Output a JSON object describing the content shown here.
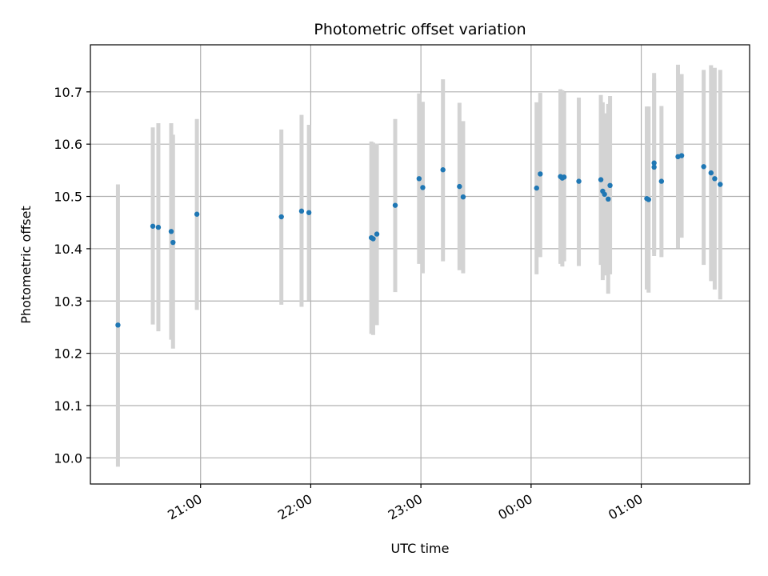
{
  "chart_data": {
    "type": "scatter",
    "title": "Photometric offset variation",
    "xlabel": "UTC time",
    "ylabel": "Photometric offset",
    "grid": true,
    "legend": "none",
    "x_axis": {
      "kind": "time",
      "range": [
        "2000-01-01T20:00",
        "2000-01-02T01:59"
      ],
      "ticks": [
        {
          "t": "2000-01-01T21:00",
          "label": "21:00"
        },
        {
          "t": "2000-01-01T22:00",
          "label": "22:00"
        },
        {
          "t": "2000-01-01T23:00",
          "label": "23:00"
        },
        {
          "t": "2000-01-02T00:00",
          "label": "00:00"
        },
        {
          "t": "2000-01-02T01:00",
          "label": "01:00"
        }
      ]
    },
    "y_axis": {
      "range": [
        9.95,
        10.79
      ],
      "ticks": [
        {
          "v": 10.0,
          "label": "10.0"
        },
        {
          "v": 10.1,
          "label": "10.1"
        },
        {
          "v": 10.2,
          "label": "10.2"
        },
        {
          "v": 10.3,
          "label": "10.3"
        },
        {
          "v": 10.4,
          "label": "10.4"
        },
        {
          "v": 10.5,
          "label": "10.5"
        },
        {
          "v": 10.6,
          "label": "10.6"
        },
        {
          "v": 10.7,
          "label": "10.7"
        }
      ]
    },
    "colors": {
      "point": "#1f77b4",
      "error_bar": "#d3d3d3",
      "grid": "#b0b0b0"
    },
    "points": [
      {
        "t": "2000-01-01T20:15",
        "y": 10.254,
        "lo": 9.983,
        "hi": 10.523
      },
      {
        "t": "2000-01-01T20:34",
        "y": 10.443,
        "lo": 10.255,
        "hi": 10.632
      },
      {
        "t": "2000-01-01T20:37",
        "y": 10.441,
        "lo": 10.242,
        "hi": 10.64
      },
      {
        "t": "2000-01-01T20:44",
        "y": 10.433,
        "lo": 10.226,
        "hi": 10.64
      },
      {
        "t": "2000-01-01T20:45",
        "y": 10.412,
        "lo": 10.209,
        "hi": 10.618
      },
      {
        "t": "2000-01-01T20:58",
        "y": 10.466,
        "lo": 10.283,
        "hi": 10.648
      },
      {
        "t": "2000-01-01T21:44",
        "y": 10.461,
        "lo": 10.293,
        "hi": 10.628
      },
      {
        "t": "2000-01-01T21:55",
        "y": 10.472,
        "lo": 10.289,
        "hi": 10.656
      },
      {
        "t": "2000-01-01T21:59",
        "y": 10.469,
        "lo": 10.301,
        "hi": 10.637
      },
      {
        "t": "2000-01-01T22:33",
        "y": 10.421,
        "lo": 10.237,
        "hi": 10.605
      },
      {
        "t": "2000-01-01T22:34",
        "y": 10.419,
        "lo": 10.235,
        "hi": 10.603
      },
      {
        "t": "2000-01-01T22:36",
        "y": 10.428,
        "lo": 10.254,
        "hi": 10.601
      },
      {
        "t": "2000-01-01T22:46",
        "y": 10.483,
        "lo": 10.317,
        "hi": 10.648
      },
      {
        "t": "2000-01-01T22:59",
        "y": 10.534,
        "lo": 10.371,
        "hi": 10.697
      },
      {
        "t": "2000-01-01T23:01",
        "y": 10.517,
        "lo": 10.353,
        "hi": 10.681
      },
      {
        "t": "2000-01-01T23:12",
        "y": 10.551,
        "lo": 10.376,
        "hi": 10.724
      },
      {
        "t": "2000-01-01T23:21",
        "y": 10.519,
        "lo": 10.359,
        "hi": 10.679
      },
      {
        "t": "2000-01-01T23:23",
        "y": 10.499,
        "lo": 10.353,
        "hi": 10.644
      },
      {
        "t": "2000-01-02T00:03",
        "y": 10.516,
        "lo": 10.351,
        "hi": 10.68
      },
      {
        "t": "2000-01-02T00:05",
        "y": 10.543,
        "lo": 10.384,
        "hi": 10.698
      },
      {
        "t": "2000-01-02T00:16",
        "y": 10.538,
        "lo": 10.371,
        "hi": 10.705
      },
      {
        "t": "2000-01-02T00:17",
        "y": 10.535,
        "lo": 10.366,
        "hi": 10.703
      },
      {
        "t": "2000-01-02T00:18",
        "y": 10.537,
        "lo": 10.376,
        "hi": 10.699
      },
      {
        "t": "2000-01-02T00:26",
        "y": 10.529,
        "lo": 10.367,
        "hi": 10.689
      },
      {
        "t": "2000-01-02T00:38",
        "y": 10.532,
        "lo": 10.369,
        "hi": 10.694
      },
      {
        "t": "2000-01-02T00:39",
        "y": 10.51,
        "lo": 10.34,
        "hi": 10.68
      },
      {
        "t": "2000-01-02T00:40",
        "y": 10.504,
        "lo": 10.349,
        "hi": 10.659
      },
      {
        "t": "2000-01-02T00:42",
        "y": 10.495,
        "lo": 10.314,
        "hi": 10.677
      },
      {
        "t": "2000-01-02T00:43",
        "y": 10.521,
        "lo": 10.351,
        "hi": 10.692
      },
      {
        "t": "2000-01-02T01:03",
        "y": 10.496,
        "lo": 10.322,
        "hi": 10.672
      },
      {
        "t": "2000-01-02T01:04",
        "y": 10.494,
        "lo": 10.316,
        "hi": 10.672
      },
      {
        "t": "2000-01-02T01:07",
        "y": 10.564,
        "lo": 10.393,
        "hi": 10.736
      },
      {
        "t": "2000-01-02T01:07",
        "y": 10.556,
        "lo": 10.386,
        "hi": 10.726
      },
      {
        "t": "2000-01-02T01:11",
        "y": 10.529,
        "lo": 10.384,
        "hi": 10.673
      },
      {
        "t": "2000-01-02T01:20",
        "y": 10.576,
        "lo": 10.401,
        "hi": 10.752
      },
      {
        "t": "2000-01-02T01:22",
        "y": 10.578,
        "lo": 10.421,
        "hi": 10.734
      },
      {
        "t": "2000-01-02T01:34",
        "y": 10.557,
        "lo": 10.369,
        "hi": 10.742
      },
      {
        "t": "2000-01-02T01:38",
        "y": 10.545,
        "lo": 10.338,
        "hi": 10.751
      },
      {
        "t": "2000-01-02T01:40",
        "y": 10.534,
        "lo": 10.322,
        "hi": 10.746
      },
      {
        "t": "2000-01-02T01:43",
        "y": 10.523,
        "lo": 10.303,
        "hi": 10.742
      }
    ]
  }
}
